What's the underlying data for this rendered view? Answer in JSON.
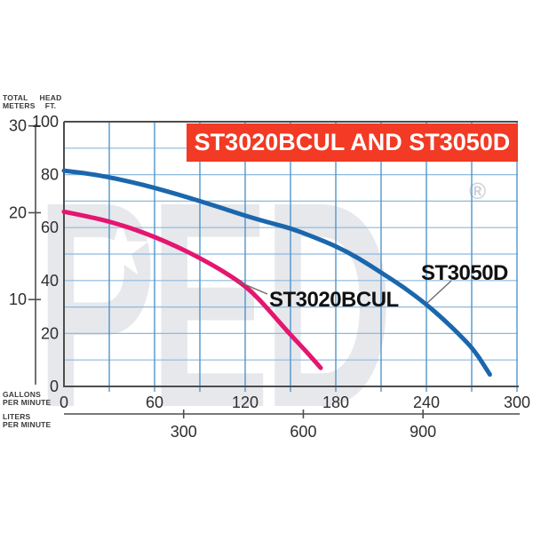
{
  "title_banner": {
    "text": "ST3020BCUL AND ST3050D",
    "bg_color": "#f23a24",
    "text_color": "#ffffff"
  },
  "y_axis_captions": {
    "meters_line1": "TOTAL",
    "meters_line2": "METERS",
    "feet_line1": "HEAD",
    "feet_line2": "FT."
  },
  "x_axis_captions": {
    "gpm_line1": "GALLONS",
    "gpm_line2": "PER MINUTE",
    "lpm_line1": "LITERS",
    "lpm_line2": "PER MINUTE"
  },
  "watermark": {
    "text": "PED",
    "star": "★",
    "registered": "®"
  },
  "chart_data": {
    "type": "line",
    "title": "ST3020BCUL AND ST3050D",
    "x_axis": {
      "label": "GALLONS PER MINUTE",
      "ticks": [
        0,
        60,
        120,
        180,
        240,
        300
      ],
      "lim": [
        0,
        300
      ],
      "grid_step": 30
    },
    "x_axis2": {
      "label": "LITERS PER MINUTE",
      "ticks": [
        300,
        600,
        900
      ],
      "gpm_per_lpm": 0.26417
    },
    "y_axis": {
      "label": "HEAD FT.",
      "ticks": [
        100,
        80,
        60,
        40,
        20,
        0
      ],
      "lim": [
        0,
        100
      ],
      "grid_step": 10
    },
    "y_axis2": {
      "label": "TOTAL METERS",
      "ticks": [
        30,
        20,
        10
      ],
      "ft_per_m": 3.2808
    },
    "grid": true,
    "legend_position": "inline-labels",
    "series": [
      {
        "name": "ST3050D",
        "color": "#1b67ad",
        "points_gpm_ft": [
          [
            0,
            81.5
          ],
          [
            15,
            80.5
          ],
          [
            30,
            79
          ],
          [
            45,
            77.2
          ],
          [
            60,
            75
          ],
          [
            75,
            72.6
          ],
          [
            90,
            70
          ],
          [
            105,
            67.3
          ],
          [
            120,
            64.5
          ],
          [
            135,
            62
          ],
          [
            150,
            59.8
          ],
          [
            165,
            56.5
          ],
          [
            180,
            53
          ],
          [
            195,
            48.5
          ],
          [
            210,
            43
          ],
          [
            225,
            37.5
          ],
          [
            240,
            31
          ],
          [
            252,
            25
          ],
          [
            262,
            19.5
          ],
          [
            272,
            13.5
          ],
          [
            282,
            4.5
          ]
        ]
      },
      {
        "name": "ST3020BCUL",
        "color": "#e51570",
        "points_gpm_ft": [
          [
            0,
            66
          ],
          [
            15,
            64.3
          ],
          [
            30,
            62.3
          ],
          [
            45,
            59.7
          ],
          [
            60,
            56.5
          ],
          [
            75,
            52.8
          ],
          [
            90,
            48.5
          ],
          [
            105,
            43.7
          ],
          [
            120,
            38
          ],
          [
            130,
            32.5
          ],
          [
            140,
            26
          ],
          [
            150,
            19.5
          ],
          [
            160,
            13.5
          ],
          [
            170,
            7
          ]
        ]
      }
    ],
    "colors": {
      "grid_horizontal": "#8db9dd",
      "grid_vertical": "#4f96cc",
      "axis_dark": "#4d4d4d",
      "tick_text": "#2e2e2e",
      "leader_line": "#6f6a64"
    }
  }
}
